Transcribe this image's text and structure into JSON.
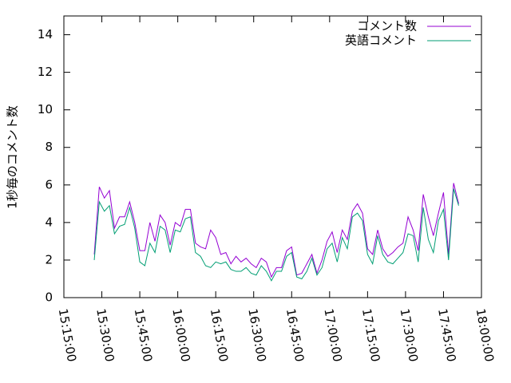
{
  "chart_data": {
    "type": "line",
    "ylabel": "1秒毎のコメント数",
    "x": [
      "15:27:00",
      "15:29:00",
      "15:31:00",
      "15:33:00",
      "15:35:00",
      "15:37:00",
      "15:39:00",
      "15:41:00",
      "15:43:00",
      "15:45:00",
      "15:47:00",
      "15:49:00",
      "15:51:00",
      "15:53:00",
      "15:55:00",
      "15:57:00",
      "15:59:00",
      "16:01:00",
      "16:03:00",
      "16:05:00",
      "16:07:00",
      "16:09:00",
      "16:11:00",
      "16:13:00",
      "16:15:00",
      "16:17:00",
      "16:19:00",
      "16:21:00",
      "16:23:00",
      "16:25:00",
      "16:27:00",
      "16:29:00",
      "16:31:00",
      "16:33:00",
      "16:35:00",
      "16:37:00",
      "16:39:00",
      "16:41:00",
      "16:43:00",
      "16:45:00",
      "16:47:00",
      "16:49:00",
      "16:51:00",
      "16:53:00",
      "16:55:00",
      "16:57:00",
      "16:59:00",
      "17:01:00",
      "17:03:00",
      "17:05:00",
      "17:07:00",
      "17:09:00",
      "17:11:00",
      "17:13:00",
      "17:15:00",
      "17:17:00",
      "17:19:00",
      "17:21:00",
      "17:23:00",
      "17:25:00",
      "17:27:00",
      "17:29:00",
      "17:31:00",
      "17:33:00",
      "17:35:00",
      "17:37:00",
      "17:39:00",
      "17:41:00",
      "17:43:00",
      "17:45:00",
      "17:47:00",
      "17:49:00",
      "17:51:00"
    ],
    "series": [
      {
        "name": "コメント数",
        "color": "#9400d3",
        "values": [
          2.3,
          5.9,
          5.3,
          5.7,
          3.7,
          4.3,
          4.3,
          5.1,
          4.0,
          2.5,
          2.5,
          4.0,
          3.0,
          4.4,
          4.0,
          2.8,
          4.0,
          3.8,
          4.7,
          4.7,
          2.9,
          2.7,
          2.6,
          3.6,
          3.2,
          2.3,
          2.4,
          1.8,
          2.2,
          1.9,
          2.1,
          1.8,
          1.6,
          2.1,
          1.9,
          1.1,
          1.6,
          1.6,
          2.5,
          2.7,
          1.2,
          1.3,
          1.8,
          2.3,
          1.3,
          2.0,
          3.0,
          3.5,
          2.4,
          3.6,
          3.1,
          4.6,
          5.0,
          4.5,
          2.6,
          2.3,
          3.6,
          2.6,
          2.2,
          2.4,
          2.7,
          2.9,
          4.3,
          3.6,
          2.5,
          5.5,
          4.3,
          3.3,
          4.5,
          5.6,
          2.3,
          6.1,
          5.0
        ]
      },
      {
        "name": "英語コメント",
        "color": "#009e73",
        "values": [
          2.0,
          5.1,
          4.6,
          4.9,
          3.4,
          3.8,
          3.9,
          4.8,
          3.7,
          1.9,
          1.7,
          2.9,
          2.4,
          3.8,
          3.6,
          2.4,
          3.6,
          3.5,
          4.2,
          4.3,
          2.4,
          2.2,
          1.7,
          1.6,
          1.9,
          1.8,
          1.9,
          1.5,
          1.4,
          1.4,
          1.6,
          1.3,
          1.2,
          1.7,
          1.4,
          0.9,
          1.4,
          1.4,
          2.2,
          2.4,
          1.1,
          1.0,
          1.4,
          2.1,
          1.2,
          1.6,
          2.6,
          2.9,
          1.9,
          3.2,
          2.6,
          4.3,
          4.5,
          4.1,
          2.3,
          1.8,
          3.3,
          2.3,
          1.9,
          1.8,
          2.1,
          2.4,
          3.4,
          3.3,
          1.9,
          4.8,
          3.1,
          2.4,
          4.1,
          4.7,
          2.0,
          5.8,
          4.9
        ]
      }
    ],
    "xlim": [
      "15:15:00",
      "18:00:00"
    ],
    "xticks": [
      "15:15:00",
      "15:30:00",
      "15:45:00",
      "16:00:00",
      "16:15:00",
      "16:30:00",
      "16:45:00",
      "17:00:00",
      "17:15:00",
      "17:30:00",
      "17:45:00",
      "18:00:00"
    ],
    "ylim": [
      0,
      15
    ],
    "yticks": [
      0,
      2,
      4,
      6,
      8,
      10,
      12,
      14
    ],
    "legend": "upper-right"
  }
}
